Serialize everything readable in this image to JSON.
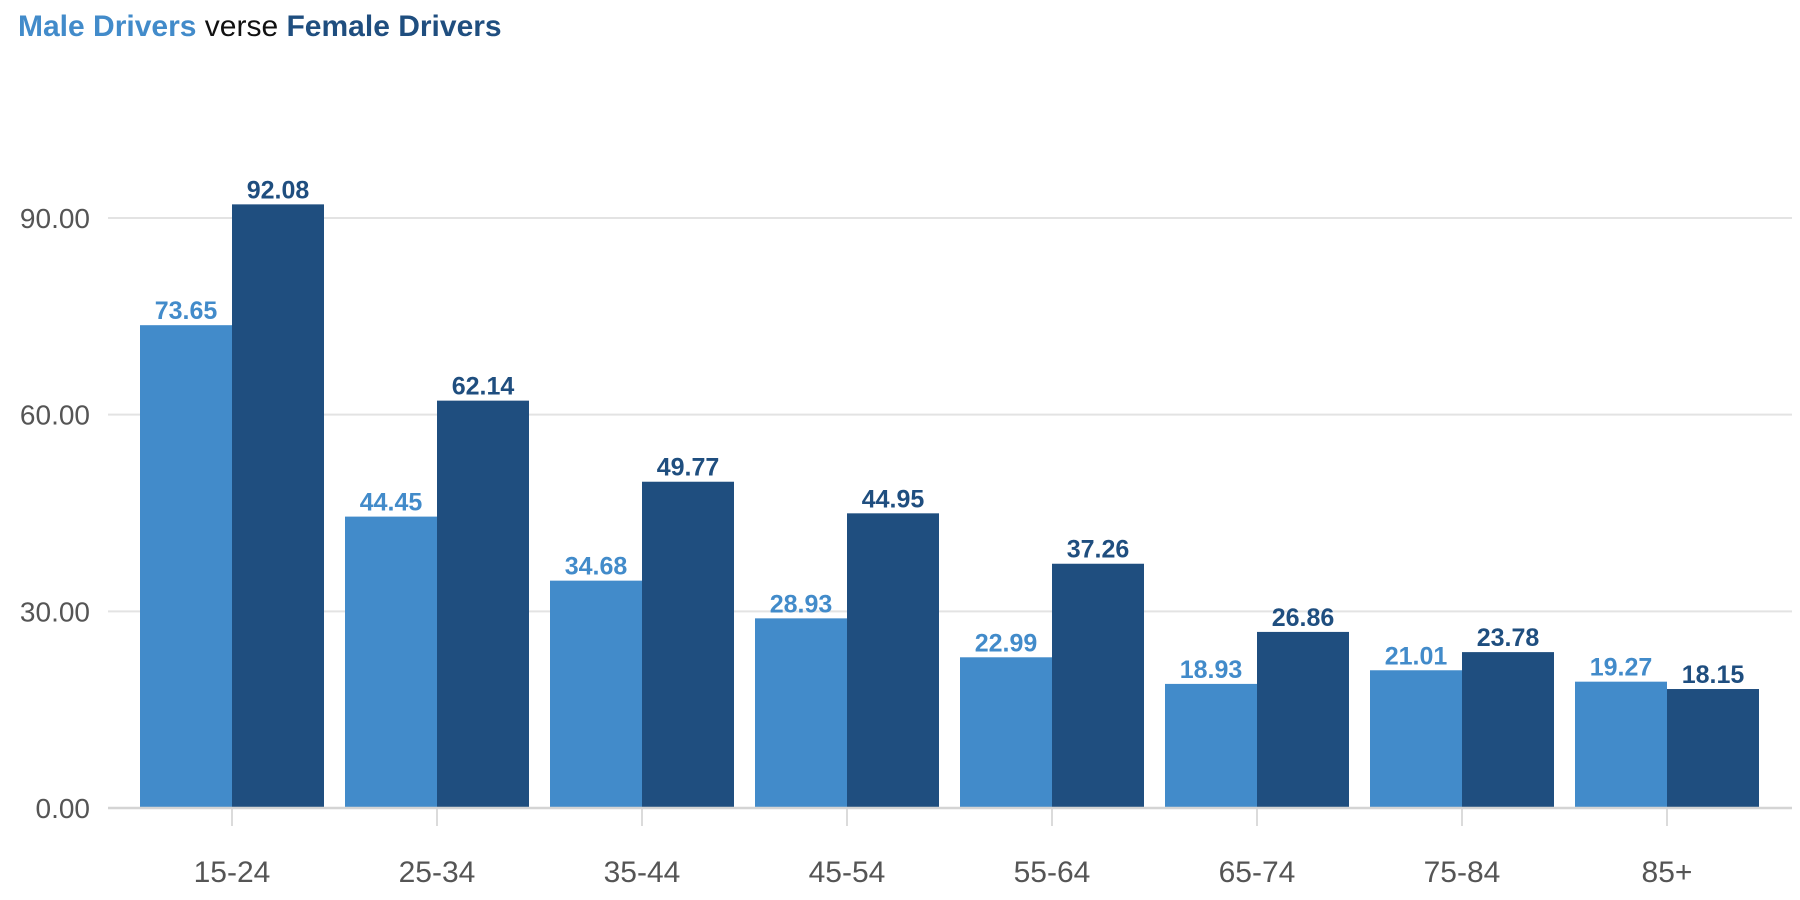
{
  "title": {
    "male_part": "Male Drivers",
    "middle_part": "verse",
    "female_part": "Female Drivers"
  },
  "colors": {
    "male": "#428BCA",
    "female": "#1F4E7F"
  },
  "chart_data": {
    "type": "bar",
    "categories": [
      "15-24",
      "25-34",
      "35-44",
      "45-54",
      "55-64",
      "65-74",
      "75-84",
      "85+"
    ],
    "series": [
      {
        "name": "Male Drivers",
        "color": "#428BCA",
        "values": [
          73.65,
          44.45,
          34.68,
          28.93,
          22.99,
          18.93,
          21.01,
          19.27
        ]
      },
      {
        "name": "Female Drivers",
        "color": "#1F4E7F",
        "values": [
          92.08,
          62.14,
          49.77,
          44.95,
          37.26,
          26.86,
          23.78,
          18.15
        ]
      }
    ],
    "title": "Male Drivers verse Female Drivers",
    "xlabel": "",
    "ylabel": "",
    "ylim": [
      0,
      90
    ],
    "yticks": [
      "0.00",
      "30.00",
      "60.00",
      "90.00"
    ],
    "grid": true,
    "legend": "none"
  }
}
